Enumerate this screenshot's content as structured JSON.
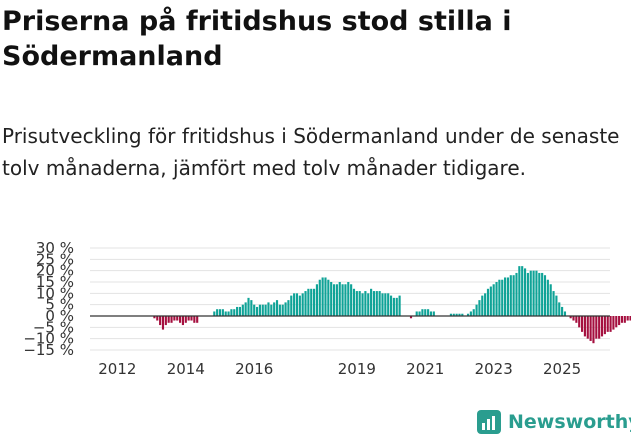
{
  "header": {
    "title": "Priserna på fritidshus stod stilla i Södermanland",
    "subtitle": "Prisutveckling för fritidshus i Södermanland under de senaste tolv månaderna, jämfört med tolv månader tidigare."
  },
  "brand": {
    "name": "Newsworthy",
    "icon": "newsworthy-logo-icon"
  },
  "colors": {
    "positive": "#0fa397",
    "negative": "#a5103f",
    "grid": "#e3e3e3",
    "zero_line": "#333333",
    "brand": "#2a9d8f"
  },
  "chart_data": {
    "type": "bar",
    "title": "Prisutveckling för fritidshus i Södermanland",
    "xlabel": "",
    "ylabel": "",
    "ylim": [
      -15,
      30
    ],
    "y_ticks": [
      -15,
      -10,
      -5,
      0,
      5,
      10,
      15,
      20,
      25,
      30
    ],
    "y_tick_labels": [
      "−15 %",
      "−10 %",
      "−5 %",
      "0 %",
      "5 %",
      "10 %",
      "15 %",
      "20 %",
      "25 %",
      "30 %"
    ],
    "x_ticks": [
      2012,
      2014,
      2016,
      2019,
      2021,
      2023,
      2025
    ],
    "x_tick_labels": [
      "2012",
      "2014",
      "2016",
      "2019",
      "2021",
      "2023",
      "2025"
    ],
    "x_range": [
      2011.2,
      2026.4
    ],
    "start_year": 2011.25,
    "step": 0.0833333,
    "annotation": {
      "label": "0 %",
      "value": 0
    },
    "values": [
      0,
      0,
      0,
      0,
      0,
      0,
      0,
      0,
      0,
      0,
      0,
      0,
      0,
      0,
      0,
      0,
      0,
      0,
      0,
      0,
      0,
      0,
      -1,
      -2,
      -4,
      -6,
      -4,
      -3,
      -3,
      -2,
      -2,
      -3,
      -4,
      -3,
      -2,
      -2,
      -3,
      -3,
      0,
      0,
      0,
      0,
      0,
      2,
      3,
      3,
      3,
      2,
      2,
      3,
      3,
      4,
      4,
      5,
      6,
      8,
      7,
      5,
      4,
      5,
      5,
      5,
      6,
      5,
      6,
      7,
      5,
      5,
      6,
      7,
      9,
      10,
      10,
      9,
      10,
      11,
      12,
      12,
      12,
      14,
      16,
      17,
      17,
      16,
      15,
      14,
      14,
      15,
      14,
      14,
      15,
      14,
      12,
      11,
      11,
      10,
      11,
      10,
      12,
      11,
      11,
      11,
      10,
      10,
      10,
      9,
      8,
      8,
      9,
      0,
      0,
      0,
      -1,
      0,
      2,
      2,
      3,
      3,
      3,
      2,
      2,
      0,
      0,
      0,
      0,
      0,
      1,
      1,
      1,
      1,
      1,
      0,
      1,
      2,
      3,
      5,
      7,
      9,
      10,
      12,
      13,
      14,
      15,
      16,
      16,
      17,
      17,
      18,
      18,
      19,
      22,
      22,
      21,
      19,
      20,
      20,
      20,
      19,
      19,
      18,
      16,
      14,
      11,
      9,
      6,
      4,
      2,
      0,
      -1,
      -2,
      -3,
      -5,
      -7,
      -9,
      -10,
      -11,
      -12,
      -10,
      -10,
      -9,
      -8,
      -7,
      -7,
      -6,
      -5,
      -4,
      -3,
      -3,
      -2,
      -2,
      -1,
      -1,
      -2,
      -3,
      -2,
      -3,
      -4,
      -5,
      -4,
      -5,
      -4,
      -3,
      -1,
      0
    ]
  }
}
